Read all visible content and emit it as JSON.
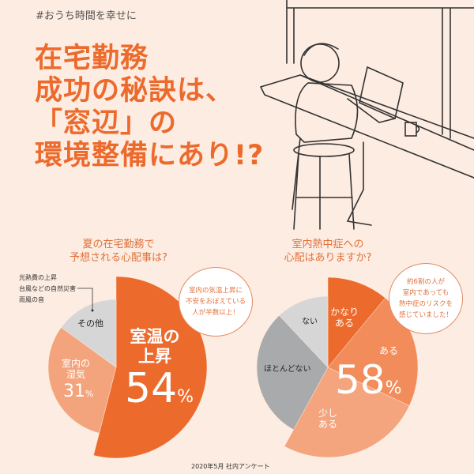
{
  "hashtag": "#おうち時間を幸せに",
  "title_lines": [
    "在宅勤務",
    "成功の秘訣は、",
    "「窓辺」の",
    "環境整備にあり!?"
  ],
  "footer": "2020年5月 社内アンケート",
  "colors": {
    "background": "#fcece1",
    "accent": "#ec6a2c",
    "salmon": "#f4a47c",
    "mid_orange": "#f28c5a",
    "light_gray": "#d6d6d6",
    "dark_gray": "#a9aaac"
  },
  "chart_data": [
    {
      "type": "pie",
      "title": "夏の在宅勤務で予想される心配事は?",
      "title_lines": [
        "夏の在宅勤務で",
        "予想される心配事は?"
      ],
      "slices": [
        {
          "label": "室温の上昇",
          "value": 54,
          "value_label": "54",
          "unit": "%",
          "color": "#ec6a2c",
          "exploded": true
        },
        {
          "label": "室内の湿気",
          "value": 31,
          "value_label": "31",
          "unit": "%",
          "color": "#f4a47c"
        },
        {
          "label": "その他",
          "value": 15,
          "color": "#d6d6d6"
        }
      ],
      "other_breakdown": [
        "光熱費の上昇",
        "台風などの自然災害",
        "雨風の音"
      ],
      "callout": [
        "室内の気温上昇に",
        "不安をおぼえている",
        "人が半数以上！"
      ]
    },
    {
      "type": "pie",
      "title": "室内熱中症への心配はありますか?",
      "title_lines": [
        "室内熱中症への",
        "心配はありますか?"
      ],
      "slices": [
        {
          "label": "かなりある",
          "value": 11,
          "color": "#ec6a2c",
          "exploded": true
        },
        {
          "label": "ある",
          "value": 21,
          "color": "#f28c5a",
          "exploded": true
        },
        {
          "label": "少しある",
          "value": 26,
          "color": "#f5a57d",
          "exploded": true
        },
        {
          "label": "ほとんどない",
          "value": 30,
          "color": "#a9aaac"
        },
        {
          "label": "ない",
          "value": 12,
          "color": "#d6d6d6"
        }
      ],
      "highlight": {
        "value_label": "58",
        "unit": "%"
      },
      "callout": [
        "約6割の人が",
        "室内であっても",
        "熱中症のリスクを",
        "感じていました！"
      ]
    }
  ]
}
